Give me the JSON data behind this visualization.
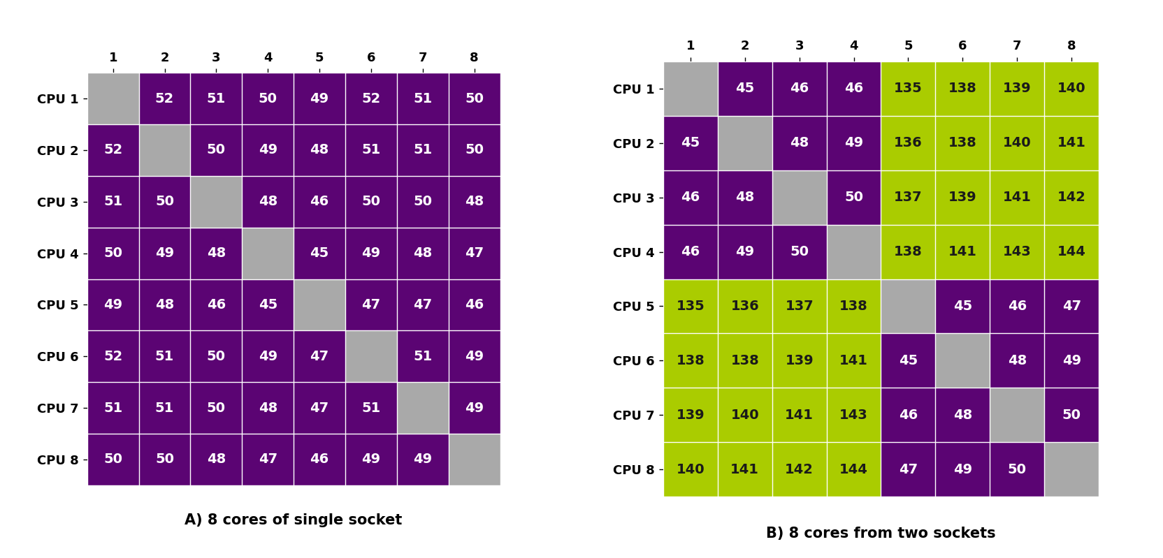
{
  "matrix_A": [
    [
      null,
      52,
      51,
      50,
      49,
      52,
      51,
      50
    ],
    [
      52,
      null,
      50,
      49,
      48,
      51,
      51,
      50
    ],
    [
      51,
      50,
      null,
      48,
      46,
      50,
      50,
      48
    ],
    [
      50,
      49,
      48,
      null,
      45,
      49,
      48,
      47
    ],
    [
      49,
      48,
      46,
      45,
      null,
      47,
      47,
      46
    ],
    [
      52,
      51,
      50,
      49,
      47,
      null,
      51,
      49
    ],
    [
      51,
      51,
      50,
      48,
      47,
      51,
      null,
      49
    ],
    [
      50,
      50,
      48,
      47,
      46,
      49,
      49,
      null
    ]
  ],
  "matrix_B": [
    [
      null,
      45,
      46,
      46,
      135,
      138,
      139,
      140
    ],
    [
      45,
      null,
      48,
      49,
      136,
      138,
      140,
      141
    ],
    [
      46,
      48,
      null,
      50,
      137,
      139,
      141,
      142
    ],
    [
      46,
      49,
      50,
      null,
      138,
      141,
      143,
      144
    ],
    [
      135,
      136,
      137,
      138,
      null,
      45,
      46,
      47
    ],
    [
      138,
      138,
      139,
      141,
      45,
      null,
      48,
      49
    ],
    [
      139,
      140,
      141,
      143,
      46,
      48,
      null,
      50
    ],
    [
      140,
      141,
      142,
      144,
      47,
      49,
      50,
      null
    ]
  ],
  "title_A": "A) 8 cores of single socket",
  "title_B": "B) 8 cores from two sockets",
  "row_labels": [
    "CPU 1",
    "CPU 2",
    "CPU 3",
    "CPU 4",
    "CPU 5",
    "CPU 6",
    "CPU 7",
    "CPU 8"
  ],
  "col_labels": [
    "1",
    "2",
    "3",
    "4",
    "5",
    "6",
    "7",
    "8"
  ],
  "color_purple": "#5B0473",
  "color_gray": "#A9A9A9",
  "color_yellow_green": "#AACC00",
  "text_color_purple": "#FFFFFF",
  "text_color_yellow_green": "#1A1A1A",
  "n": 8,
  "socket1_size": 4,
  "figsize": [
    16.64,
    7.99
  ],
  "dpi": 100
}
